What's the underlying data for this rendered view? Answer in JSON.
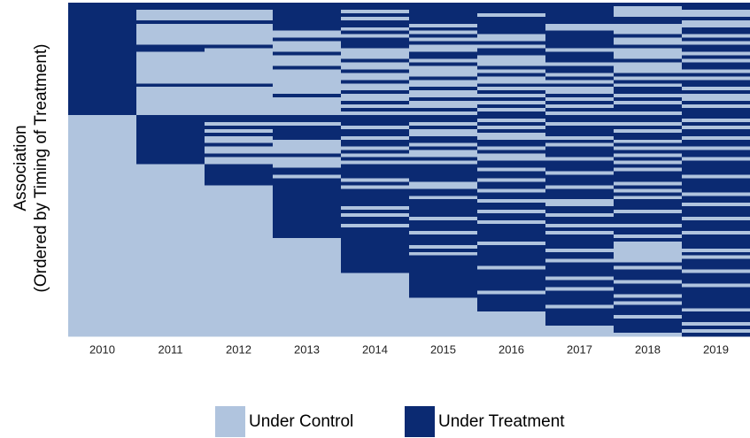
{
  "chart_data": {
    "type": "heatmap",
    "ylabel": [
      "Association",
      "(Ordered by Timing of Treatment)"
    ],
    "categories": [
      "2010",
      "2011",
      "2012",
      "2013",
      "2014",
      "2015",
      "2016",
      "2017",
      "2018",
      "2019"
    ],
    "legend": [
      {
        "name": "Under Control",
        "color": "#b0c4de"
      },
      {
        "name": "Under Treatment",
        "color": "#0b2a72"
      }
    ],
    "values": [
      [
        1,
        1,
        1,
        1,
        1,
        1,
        1,
        1,
        1,
        1
      ],
      [
        1,
        1,
        1,
        1,
        1,
        1,
        1,
        1,
        0,
        1
      ],
      [
        1,
        0,
        0,
        1,
        0,
        1,
        1,
        1,
        0,
        0
      ],
      [
        1,
        0,
        0,
        1,
        1,
        1,
        0,
        1,
        0,
        0
      ],
      [
        1,
        0,
        0,
        1,
        0,
        1,
        1,
        1,
        1,
        1
      ],
      [
        1,
        1,
        1,
        1,
        1,
        1,
        1,
        1,
        1,
        0
      ],
      [
        1,
        0,
        0,
        1,
        1,
        0,
        1,
        0,
        0,
        0
      ],
      [
        1,
        0,
        0,
        1,
        0,
        1,
        1,
        0,
        0,
        1
      ],
      [
        1,
        0,
        0,
        0,
        1,
        0,
        1,
        1,
        0,
        1
      ],
      [
        1,
        0,
        0,
        0,
        0,
        1,
        0,
        1,
        1,
        0
      ],
      [
        1,
        0,
        0,
        1,
        1,
        0,
        0,
        1,
        0,
        1
      ],
      [
        1,
        0,
        0,
        0,
        1,
        1,
        1,
        1,
        0,
        0
      ],
      [
        1,
        1,
        1,
        0,
        1,
        0,
        0,
        1,
        1,
        1
      ],
      [
        1,
        1,
        0,
        0,
        0,
        0,
        1,
        0,
        0,
        1
      ],
      [
        1,
        0,
        0,
        1,
        0,
        1,
        1,
        1,
        0,
        0
      ],
      [
        1,
        0,
        0,
        0,
        0,
        1,
        0,
        1,
        0,
        1
      ],
      [
        1,
        0,
        0,
        0,
        1,
        0,
        0,
        1,
        1,
        0
      ],
      [
        1,
        0,
        0,
        0,
        0,
        1,
        0,
        0,
        0,
        1
      ],
      [
        1,
        0,
        0,
        1,
        0,
        0,
        1,
        1,
        0,
        1
      ],
      [
        1,
        0,
        0,
        0,
        1,
        0,
        0,
        1,
        0,
        0
      ],
      [
        1,
        0,
        0,
        0,
        0,
        0,
        1,
        0,
        1,
        1
      ],
      [
        1,
        0,
        0,
        0,
        0,
        1,
        0,
        1,
        0,
        0
      ],
      [
        1,
        0,
        0,
        0,
        1,
        0,
        0,
        0,
        1,
        1
      ],
      [
        1,
        1,
        1,
        0,
        0,
        0,
        1,
        1,
        0,
        1
      ],
      [
        1,
        0,
        0,
        0,
        0,
        1,
        0,
        0,
        1,
        0
      ],
      [
        1,
        0,
        0,
        0,
        1,
        0,
        1,
        0,
        1,
        1
      ],
      [
        1,
        0,
        0,
        1,
        0,
        0,
        0,
        1,
        0,
        0
      ],
      [
        1,
        0,
        0,
        0,
        0,
        1,
        1,
        0,
        1,
        0
      ],
      [
        1,
        0,
        0,
        0,
        1,
        0,
        0,
        1,
        0,
        1
      ],
      [
        1,
        0,
        0,
        0,
        0,
        0,
        1,
        0,
        1,
        0
      ],
      [
        1,
        0,
        0,
        0,
        1,
        1,
        0,
        1,
        1,
        1
      ],
      [
        1,
        0,
        0,
        0,
        0,
        0,
        1,
        0,
        0,
        1
      ],
      [
        0,
        1,
        1,
        1,
        1,
        1,
        1,
        1,
        1,
        1
      ],
      [
        0,
        1,
        1,
        1,
        1,
        1,
        0,
        1,
        1,
        0
      ],
      [
        0,
        1,
        0,
        0,
        1,
        0,
        1,
        0,
        0,
        1
      ],
      [
        0,
        1,
        1,
        1,
        0,
        1,
        0,
        1,
        1,
        0
      ],
      [
        0,
        1,
        0,
        1,
        1,
        0,
        1,
        1,
        0,
        1
      ],
      [
        0,
        1,
        1,
        1,
        1,
        0,
        0,
        1,
        1,
        1
      ],
      [
        0,
        1,
        0,
        1,
        0,
        1,
        0,
        0,
        1,
        0
      ],
      [
        0,
        1,
        0,
        0,
        1,
        1,
        1,
        1,
        0,
        1
      ],
      [
        0,
        1,
        1,
        0,
        1,
        0,
        1,
        0,
        1,
        1
      ],
      [
        0,
        1,
        0,
        0,
        0,
        1,
        0,
        1,
        0,
        0
      ],
      [
        0,
        1,
        0,
        0,
        1,
        0,
        1,
        1,
        1,
        1
      ],
      [
        0,
        1,
        1,
        1,
        0,
        0,
        0,
        1,
        0,
        1
      ],
      [
        0,
        1,
        0,
        0,
        1,
        1,
        0,
        0,
        1,
        0
      ],
      [
        0,
        1,
        0,
        0,
        0,
        0,
        1,
        1,
        0,
        1
      ],
      [
        0,
        0,
        1,
        0,
        1,
        1,
        1,
        1,
        1,
        1
      ],
      [
        0,
        0,
        1,
        1,
        1,
        1,
        0,
        1,
        0,
        1
      ],
      [
        0,
        0,
        1,
        1,
        1,
        1,
        1,
        0,
        1,
        1
      ],
      [
        0,
        0,
        1,
        0,
        1,
        1,
        1,
        1,
        1,
        0
      ],
      [
        0,
        0,
        1,
        1,
        0,
        1,
        0,
        1,
        1,
        1
      ],
      [
        0,
        0,
        1,
        1,
        1,
        0,
        1,
        1,
        0,
        1
      ],
      [
        0,
        0,
        0,
        1,
        0,
        0,
        1,
        0,
        1,
        1
      ],
      [
        0,
        0,
        0,
        1,
        1,
        1,
        0,
        1,
        0,
        1
      ],
      [
        0,
        0,
        0,
        1,
        1,
        1,
        1,
        1,
        1,
        0
      ],
      [
        0,
        0,
        0,
        1,
        1,
        0,
        1,
        1,
        0,
        1
      ],
      [
        0,
        0,
        0,
        1,
        1,
        1,
        0,
        0,
        1,
        1
      ],
      [
        0,
        0,
        0,
        1,
        1,
        1,
        1,
        0,
        1,
        0
      ],
      [
        0,
        0,
        0,
        1,
        0,
        1,
        1,
        1,
        1,
        1
      ],
      [
        0,
        0,
        0,
        1,
        1,
        1,
        0,
        1,
        0,
        1
      ],
      [
        0,
        0,
        0,
        1,
        0,
        1,
        1,
        0,
        1,
        1
      ],
      [
        0,
        0,
        0,
        1,
        1,
        0,
        1,
        1,
        1,
        0
      ],
      [
        0,
        0,
        0,
        1,
        1,
        1,
        0,
        1,
        1,
        1
      ],
      [
        0,
        0,
        0,
        1,
        0,
        1,
        1,
        0,
        0,
        1
      ],
      [
        0,
        0,
        0,
        1,
        1,
        1,
        1,
        1,
        1,
        1
      ],
      [
        0,
        0,
        0,
        1,
        1,
        0,
        1,
        0,
        1,
        0
      ],
      [
        0,
        0,
        0,
        1,
        1,
        1,
        1,
        1,
        0,
        1
      ],
      [
        0,
        0,
        0,
        0,
        1,
        1,
        1,
        1,
        1,
        1
      ],
      [
        0,
        0,
        0,
        0,
        1,
        1,
        0,
        1,
        0,
        1
      ],
      [
        0,
        0,
        0,
        0,
        1,
        0,
        1,
        1,
        0,
        1
      ],
      [
        0,
        0,
        0,
        0,
        1,
        1,
        1,
        0,
        0,
        0
      ],
      [
        0,
        0,
        0,
        0,
        1,
        0,
        1,
        1,
        0,
        1
      ],
      [
        0,
        0,
        0,
        0,
        1,
        1,
        1,
        1,
        0,
        0
      ],
      [
        0,
        0,
        0,
        0,
        1,
        1,
        1,
        0,
        0,
        1
      ],
      [
        0,
        0,
        0,
        0,
        1,
        1,
        1,
        1,
        1,
        1
      ],
      [
        0,
        0,
        0,
        0,
        1,
        1,
        0,
        1,
        0,
        1
      ],
      [
        0,
        0,
        0,
        0,
        1,
        1,
        1,
        1,
        1,
        0
      ],
      [
        0,
        0,
        0,
        0,
        0,
        1,
        1,
        1,
        1,
        1
      ],
      [
        0,
        0,
        0,
        0,
        0,
        1,
        1,
        0,
        1,
        1
      ],
      [
        0,
        0,
        0,
        0,
        0,
        1,
        1,
        1,
        0,
        1
      ],
      [
        0,
        0,
        0,
        0,
        0,
        1,
        1,
        1,
        1,
        0
      ],
      [
        0,
        0,
        0,
        0,
        0,
        1,
        1,
        0,
        1,
        1
      ],
      [
        0,
        0,
        0,
        0,
        0,
        1,
        0,
        1,
        1,
        1
      ],
      [
        0,
        0,
        0,
        0,
        0,
        1,
        1,
        1,
        0,
        1
      ],
      [
        0,
        0,
        0,
        0,
        0,
        0,
        1,
        1,
        1,
        1
      ],
      [
        0,
        0,
        0,
        0,
        0,
        0,
        1,
        1,
        0,
        1
      ],
      [
        0,
        0,
        0,
        0,
        0,
        0,
        1,
        0,
        1,
        1
      ],
      [
        0,
        0,
        0,
        0,
        0,
        0,
        1,
        1,
        1,
        0
      ],
      [
        0,
        0,
        0,
        0,
        0,
        0,
        0,
        1,
        1,
        1
      ],
      [
        0,
        0,
        0,
        0,
        0,
        0,
        0,
        1,
        0,
        1
      ],
      [
        0,
        0,
        0,
        0,
        0,
        0,
        0,
        1,
        1,
        1
      ],
      [
        0,
        0,
        0,
        0,
        0,
        0,
        0,
        1,
        1,
        0
      ],
      [
        0,
        0,
        0,
        0,
        0,
        0,
        0,
        0,
        1,
        1
      ],
      [
        0,
        0,
        0,
        0,
        0,
        0,
        0,
        0,
        1,
        0
      ],
      [
        0,
        0,
        0,
        0,
        0,
        0,
        0,
        0,
        0,
        1
      ]
    ]
  }
}
